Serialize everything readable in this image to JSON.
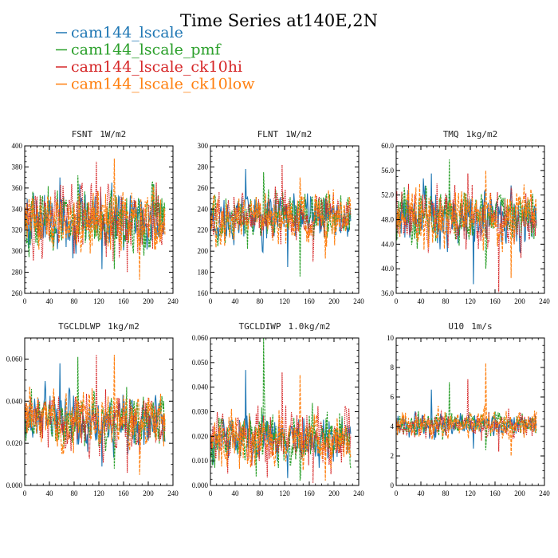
{
  "figure": {
    "title": "Time Series at140E,2N"
  },
  "legend": [
    {
      "name": "cam144_lscale",
      "color": "#1f77b4",
      "dash": ""
    },
    {
      "name": "cam144_lscale_pmf",
      "color": "#2ca02c",
      "dash": "3,1"
    },
    {
      "name": "cam144_lscale_ck10hi",
      "color": "#d62728",
      "dash": "1.5,1"
    },
    {
      "name": "cam144_lscale_ck10low",
      "color": "#ff7f0e",
      "dash": "4,1.5"
    }
  ],
  "chart_data": [
    {
      "type": "line",
      "title": "FSNT",
      "unit": "1W/m2",
      "xlim": [
        0,
        240
      ],
      "ylim": [
        260,
        400
      ],
      "xticks": [
        "0",
        "40",
        "80",
        "120",
        "160",
        "200",
        "240"
      ],
      "yticks": [
        "260",
        "280",
        "300",
        "320",
        "340",
        "360",
        "380",
        "400"
      ],
      "n_points": 228,
      "series": [
        {
          "name": "cam144_lscale",
          "mean": 330,
          "amplitude": 22,
          "min": 283,
          "max": 370
        },
        {
          "name": "cam144_lscale_pmf",
          "mean": 330,
          "amplitude": 22,
          "min": 283,
          "max": 372
        },
        {
          "name": "cam144_lscale_ck10hi",
          "mean": 330,
          "amplitude": 24,
          "min": 280,
          "max": 385
        },
        {
          "name": "cam144_lscale_ck10low",
          "mean": 330,
          "amplitude": 24,
          "min": 273,
          "max": 388
        }
      ]
    },
    {
      "type": "line",
      "title": "FLNT",
      "unit": "1W/m2",
      "xlim": [
        0,
        240
      ],
      "ylim": [
        160,
        300
      ],
      "xticks": [
        "0",
        "40",
        "80",
        "120",
        "160",
        "200",
        "240"
      ],
      "yticks": [
        "160",
        "180",
        "200",
        "220",
        "240",
        "260",
        "280",
        "300"
      ],
      "n_points": 228,
      "series": [
        {
          "name": "cam144_lscale",
          "mean": 232,
          "amplitude": 16,
          "min": 185,
          "max": 278
        },
        {
          "name": "cam144_lscale_pmf",
          "mean": 232,
          "amplitude": 16,
          "min": 176,
          "max": 275
        },
        {
          "name": "cam144_lscale_ck10hi",
          "mean": 232,
          "amplitude": 17,
          "min": 190,
          "max": 282
        },
        {
          "name": "cam144_lscale_ck10low",
          "mean": 232,
          "amplitude": 17,
          "min": 193,
          "max": 270
        }
      ]
    },
    {
      "type": "line",
      "title": "TMQ",
      "unit": "1kg/m2",
      "xlim": [
        0,
        240
      ],
      "ylim": [
        36,
        60
      ],
      "xticks": [
        "0",
        "40",
        "80",
        "120",
        "160",
        "200",
        "240"
      ],
      "yticks": [
        "36.0",
        "40.0",
        "44.0",
        "48.0",
        "52.0",
        "56.0",
        "60.0"
      ],
      "n_points": 228,
      "series": [
        {
          "name": "cam144_lscale",
          "mean": 48.5,
          "amplitude": 3.2,
          "min": 37.5,
          "max": 55.5
        },
        {
          "name": "cam144_lscale_pmf",
          "mean": 48.5,
          "amplitude": 3.2,
          "min": 40,
          "max": 57.8
        },
        {
          "name": "cam144_lscale_ck10hi",
          "mean": 48.5,
          "amplitude": 3.5,
          "min": 36.2,
          "max": 55.5
        },
        {
          "name": "cam144_lscale_ck10low",
          "mean": 48.5,
          "amplitude": 3.5,
          "min": 38.5,
          "max": 56.0
        }
      ]
    },
    {
      "type": "line",
      "title": "TGCLDLWP",
      "unit": "1kg/m2",
      "xlim": [
        0,
        240
      ],
      "ylim": [
        0,
        0.07
      ],
      "xticks": [
        "0",
        "40",
        "80",
        "120",
        "160",
        "200",
        "240"
      ],
      "yticks": [
        "0.000",
        "0.020",
        "0.040",
        "0.060"
      ],
      "ytick_values": [
        0,
        0.02,
        0.04,
        0.06
      ],
      "n_points": 228,
      "series": [
        {
          "name": "cam144_lscale",
          "mean": 0.031,
          "amplitude": 0.009,
          "min": 0.009,
          "max": 0.058
        },
        {
          "name": "cam144_lscale_pmf",
          "mean": 0.031,
          "amplitude": 0.009,
          "min": 0.008,
          "max": 0.061
        },
        {
          "name": "cam144_lscale_ck10hi",
          "mean": 0.031,
          "amplitude": 0.01,
          "min": 0.006,
          "max": 0.062
        },
        {
          "name": "cam144_lscale_ck10low",
          "mean": 0.031,
          "amplitude": 0.01,
          "min": 0.005,
          "max": 0.062
        }
      ]
    },
    {
      "type": "line",
      "title": "TGCLDIWP",
      "unit": "1.0kg/m2",
      "xlim": [
        0,
        240
      ],
      "ylim": [
        0,
        0.06
      ],
      "xticks": [
        "0",
        "40",
        "80",
        "120",
        "160",
        "200",
        "240"
      ],
      "yticks": [
        "0.000",
        "0.010",
        "0.020",
        "0.030",
        "0.040",
        "0.050",
        "0.060"
      ],
      "ytick_values": [
        0,
        0.01,
        0.02,
        0.03,
        0.04,
        0.05,
        0.06
      ],
      "n_points": 228,
      "series": [
        {
          "name": "cam144_lscale",
          "mean": 0.019,
          "amplitude": 0.007,
          "min": 0.003,
          "max": 0.047
        },
        {
          "name": "cam144_lscale_pmf",
          "mean": 0.019,
          "amplitude": 0.008,
          "min": 0.002,
          "max": 0.06
        },
        {
          "name": "cam144_lscale_ck10hi",
          "mean": 0.019,
          "amplitude": 0.008,
          "min": 0.001,
          "max": 0.046
        },
        {
          "name": "cam144_lscale_ck10low",
          "mean": 0.019,
          "amplitude": 0.008,
          "min": 0.002,
          "max": 0.045
        }
      ]
    },
    {
      "type": "line",
      "title": "U10",
      "unit": "1m/s",
      "xlim": [
        0,
        240
      ],
      "ylim": [
        0,
        10
      ],
      "xticks": [
        "0",
        "40",
        "80",
        "120",
        "160",
        "200",
        "240"
      ],
      "yticks": [
        "0",
        "2",
        "4",
        "6",
        "8",
        "10"
      ],
      "n_points": 228,
      "series": [
        {
          "name": "cam144_lscale",
          "mean": 4.1,
          "amplitude": 0.6,
          "min": 2.5,
          "max": 6.5
        },
        {
          "name": "cam144_lscale_pmf",
          "mean": 4.1,
          "amplitude": 0.6,
          "min": 2.4,
          "max": 7.0
        },
        {
          "name": "cam144_lscale_ck10hi",
          "mean": 4.1,
          "amplitude": 0.65,
          "min": 2.3,
          "max": 7.2
        },
        {
          "name": "cam144_lscale_ck10low",
          "mean": 4.1,
          "amplitude": 0.7,
          "min": 2.0,
          "max": 8.3
        }
      ]
    }
  ]
}
